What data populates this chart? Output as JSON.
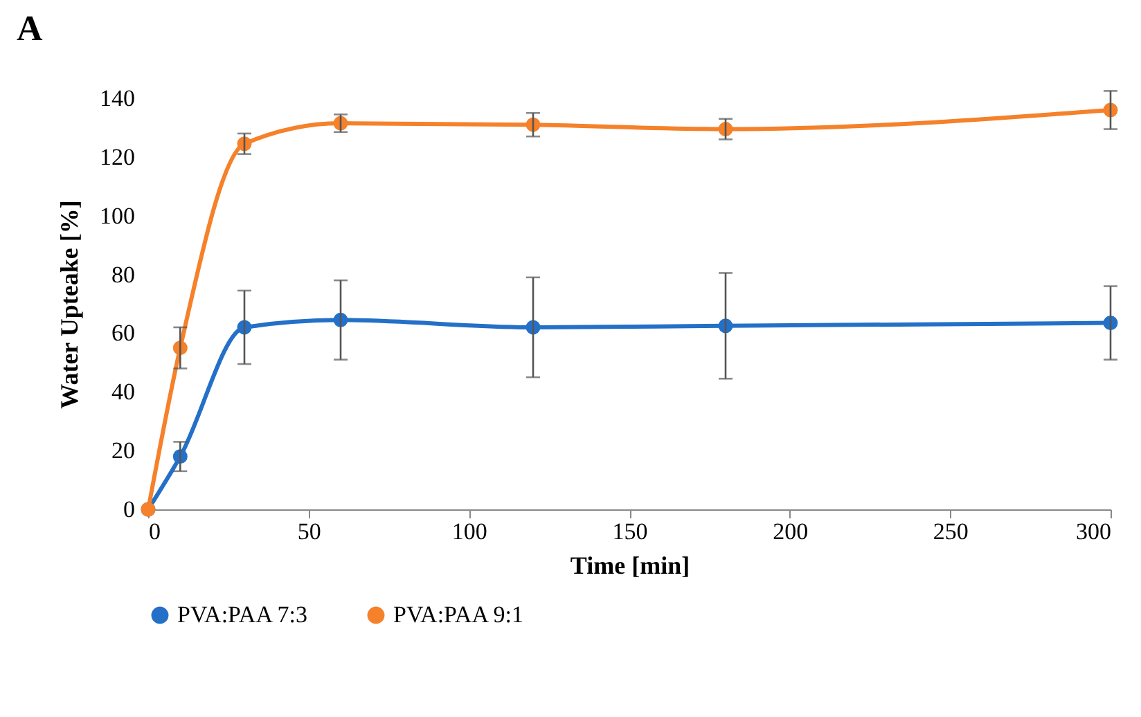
{
  "chart_data": {
    "type": "line",
    "title": "A",
    "xlabel": "Time [min]",
    "ylabel": "Water Upteake [%]",
    "x": [
      0,
      10,
      30,
      60,
      120,
      180,
      300
    ],
    "series": [
      {
        "name": "PVA:PAA 7:3",
        "color": "#2470c8",
        "values": [
          0,
          18,
          62,
          64.5,
          62,
          62.5,
          63.5
        ],
        "errors": [
          null,
          5,
          12.5,
          13.5,
          17,
          18,
          12.5
        ]
      },
      {
        "name": "PVA:PAA 9:1",
        "color": "#f5812a",
        "values": [
          0,
          55,
          124.5,
          131.5,
          131,
          129.5,
          136
        ],
        "errors": [
          null,
          7,
          3.5,
          3,
          4,
          3.5,
          6.5
        ]
      }
    ],
    "xlim": [
      0,
      300
    ],
    "xticks": [
      0,
      50,
      100,
      150,
      200,
      250,
      300
    ],
    "ylim": [
      0,
      140
    ],
    "yticks": [
      0,
      20,
      40,
      60,
      80,
      100,
      120,
      140
    ],
    "legend": "bottom",
    "marker": "circle",
    "line_style": "solid",
    "grid": false
  }
}
